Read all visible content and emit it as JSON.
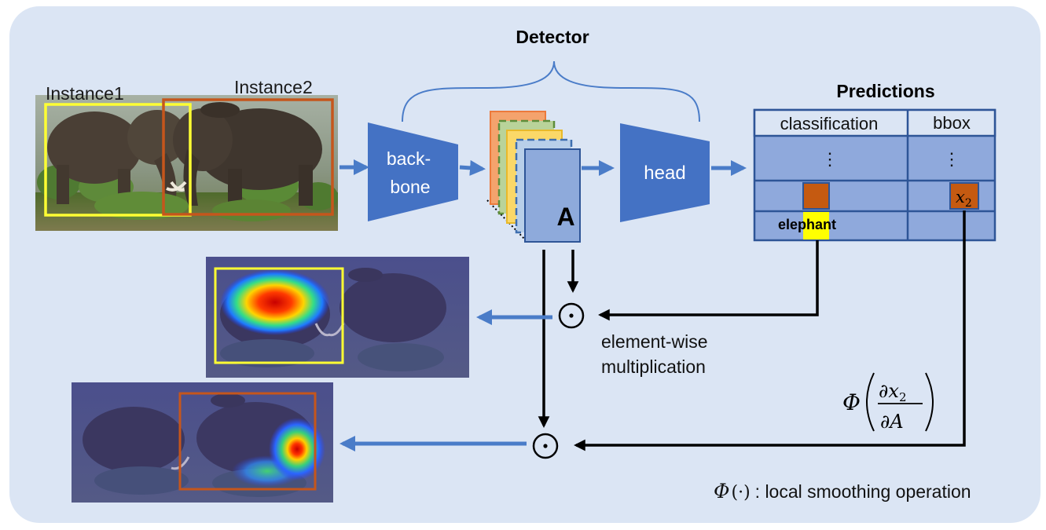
{
  "title": "Detector",
  "instances": [
    "Instance1",
    "Instance2"
  ],
  "backbone_label": [
    "back-",
    "bone"
  ],
  "feature_label": "A",
  "head_label": "head",
  "predictions": {
    "title": "Predictions",
    "col_classification": "classification",
    "col_bbox": "bbox",
    "ellipsis": "⋮",
    "class_label": "elephant",
    "bbox_var": "x",
    "bbox_var_sub": "2"
  },
  "op_symbol": "⊙",
  "op_label": [
    "element-wise",
    "multiplication"
  ],
  "phi_symbol": "Φ",
  "gradient": {
    "num_d": "∂",
    "num_var": "x",
    "num_sub": "2",
    "den": "∂A"
  },
  "footnote": {
    "phi": "Φ",
    "args": "(·)",
    "text": ": local smoothing operation"
  },
  "colors": {
    "background": "#dbe5f4",
    "block": "#4472c4",
    "arrow": "#4a7cc8",
    "table_fill": "#8fa9dc",
    "table_border": "#2e5597",
    "instance1": "#ffff33",
    "instance2": "#c5561c",
    "cell": "#c55a11",
    "highlight": "#ffff00"
  }
}
